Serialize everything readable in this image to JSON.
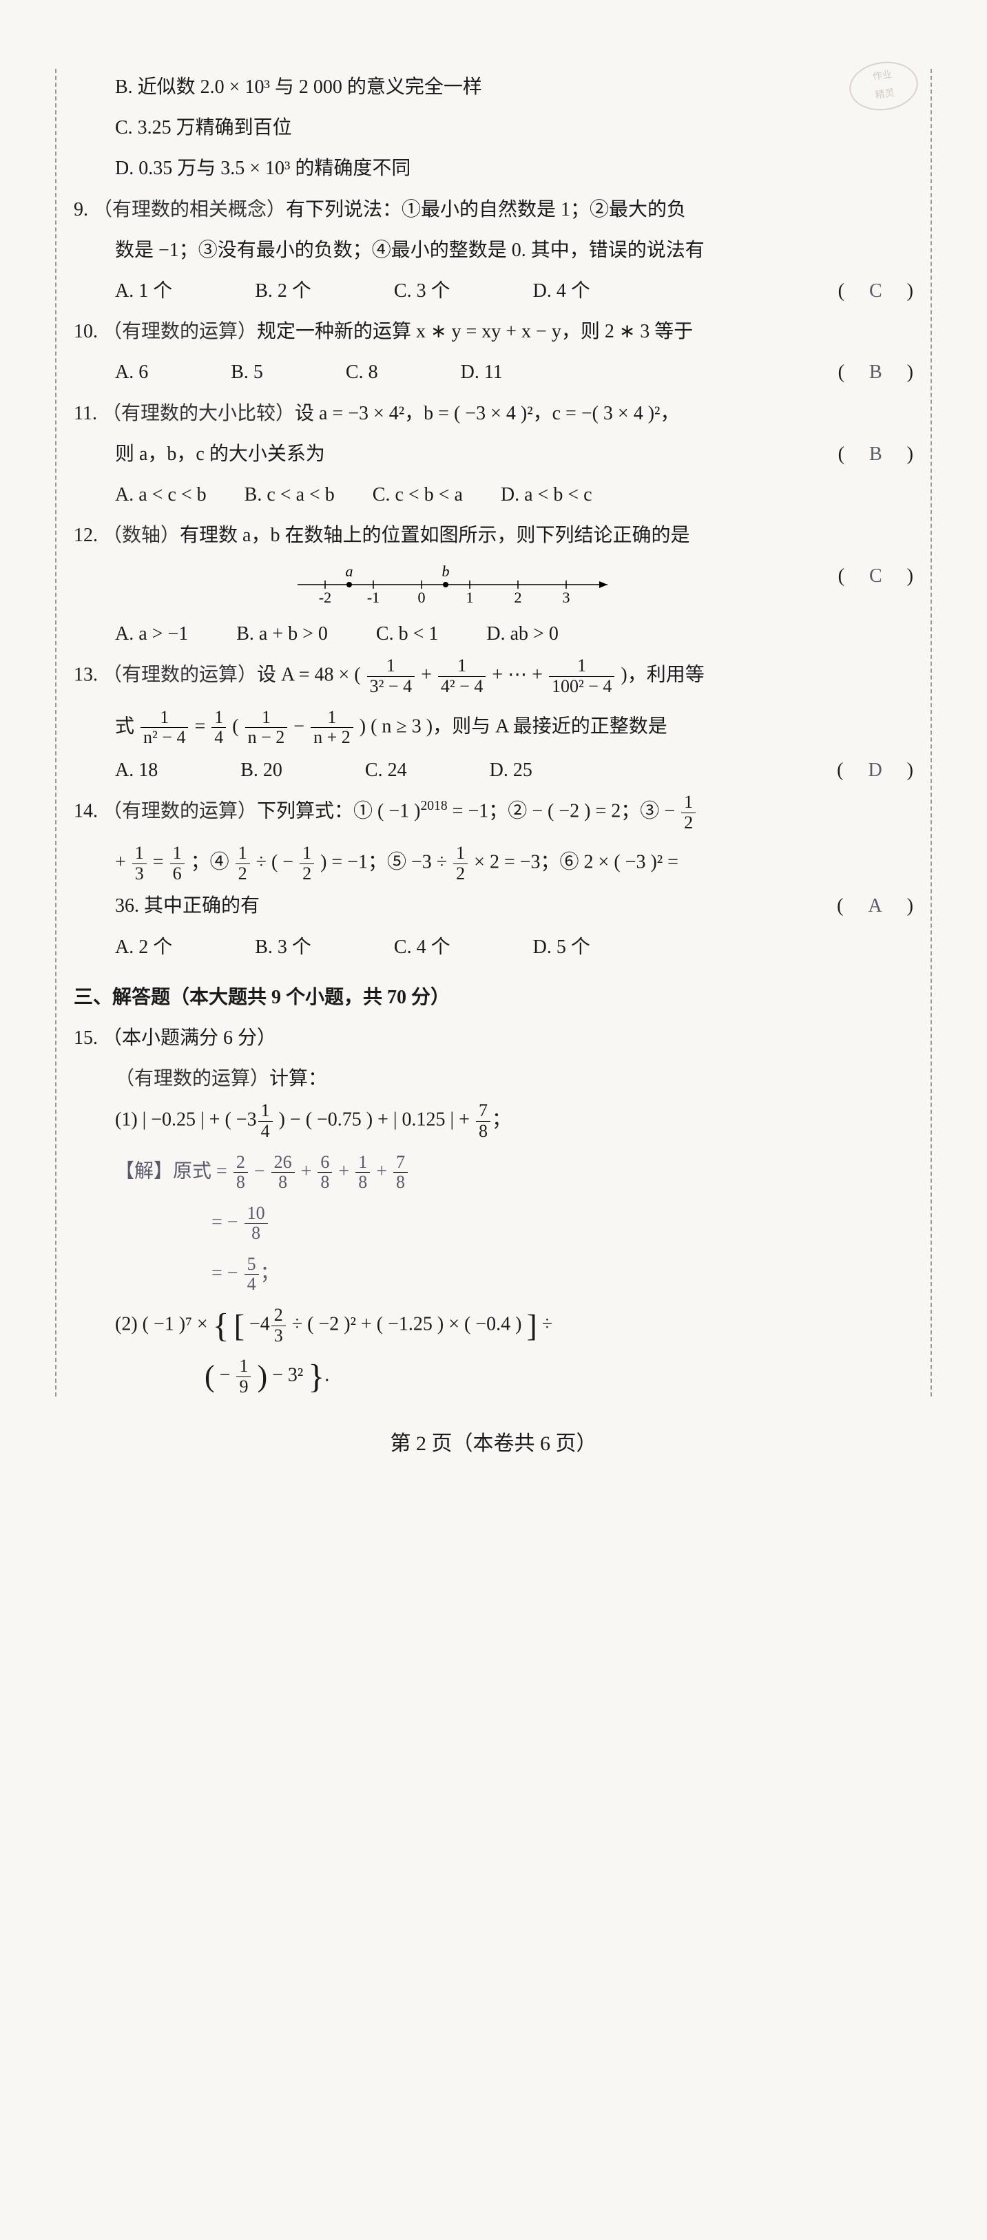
{
  "stamp": {
    "line1": "作业",
    "line2": "帮帮帮",
    "line3": "精灵"
  },
  "q8": {
    "optB": "B. 近似数 2.0 × 10³ 与 2 000 的意义完全一样",
    "optC": "C. 3.25 万精确到百位",
    "optD": "D. 0.35 万与 3.5 × 10³ 的精确度不同"
  },
  "q9": {
    "num": "9.",
    "tag": "（有理数的相关概念）",
    "body_l1": "有下列说法：①最小的自然数是 1；②最大的负",
    "body_l2": "数是 −1；③没有最小的负数；④最小的整数是 0. 其中，错误的说法有",
    "answer": "C",
    "A": "A. 1 个",
    "B": "B. 2 个",
    "C": "C. 3 个",
    "D": "D. 4 个"
  },
  "q10": {
    "num": "10.",
    "tag": "（有理数的运算）",
    "body": "规定一种新的运算 x ∗ y = xy + x − y，则 2 ∗ 3 等于",
    "answer": "B",
    "A": "A. 6",
    "B": "B. 5",
    "C": "C. 8",
    "D": "D. 11"
  },
  "q11": {
    "num": "11.",
    "tag": "（有理数的大小比较）",
    "body_l1": "设 a = −3 × 4²，b = ( −3 × 4 )²，c = −( 3 × 4 )²，",
    "body_l2": "则 a，b，c 的大小关系为",
    "answer": "B",
    "A": "A. a < c < b",
    "B": "B. c < a < b",
    "C": "C. c < b < a",
    "D": "D. a < b < c"
  },
  "q12": {
    "num": "12.",
    "tag": "（数轴）",
    "body": "有理数 a，b 在数轴上的位置如图所示，则下列结论正确的是",
    "answer": "C",
    "numberline": {
      "ticks": [
        -2,
        -1,
        0,
        1,
        2,
        3
      ],
      "a_pos": -1.5,
      "b_pos": 0.5,
      "a_label": "a",
      "b_label": "b"
    },
    "A": "A. a > −1",
    "B": "B. a + b > 0",
    "C": "C. b < 1",
    "D": "D. ab > 0"
  },
  "q13": {
    "num": "13.",
    "tag": "（有理数的运算）",
    "pre": "设 A = 48 × (",
    "term1": {
      "num": "1",
      "den": "3² − 4"
    },
    "plus1": " + ",
    "term2": {
      "num": "1",
      "den": "4² − 4"
    },
    "plus2": " + ⋯ + ",
    "term3": {
      "num": "1",
      "den": "100² − 4"
    },
    "post": ")，利用等",
    "l2_pre": "式",
    "l2_f1": {
      "num": "1",
      "den": "n² − 4"
    },
    "l2_eq": " = ",
    "l2_f2": {
      "num": "1",
      "den": "4"
    },
    "l2_open": "(",
    "l2_f3": {
      "num": "1",
      "den": "n − 2"
    },
    "l2_minus": " − ",
    "l2_f4": {
      "num": "1",
      "den": "n + 2"
    },
    "l2_close": ") ( n ≥ 3 )，则与 A 最接近的正整数是",
    "answer": "D",
    "A": "A. 18",
    "B": "B. 20",
    "C": "C. 24",
    "D": "D. 25"
  },
  "q14": {
    "num": "14.",
    "tag": "（有理数的运算）",
    "l1_a": "下列算式：① ( −1 )",
    "exp2018": "2018",
    "l1_b": " = −1；② − ( −2 ) = 2；③ − ",
    "l1_f1": {
      "num": "1",
      "den": "2"
    },
    "l2_a": " + ",
    "l2_f1": {
      "num": "1",
      "den": "3"
    },
    "l2_eq": " = ",
    "l2_f2": {
      "num": "1",
      "den": "6"
    },
    "l2_b": "；④ ",
    "l2_f3": {
      "num": "1",
      "den": "2"
    },
    "l2_c": " ÷ ( − ",
    "l2_f4": {
      "num": "1",
      "den": "2"
    },
    "l2_d": " ) = −1；⑤ −3 ÷ ",
    "l2_f5": {
      "num": "1",
      "den": "2"
    },
    "l2_e": " × 2 = −3；⑥ 2 × ( −3 )² =",
    "l3": "36. 其中正确的有",
    "answer": "A",
    "A": "A. 2 个",
    "B": "B. 3 个",
    "C": "C. 4 个",
    "D": "D. 5 个"
  },
  "section3": "三、解答题（本大题共 9 个小题，共 70 分）",
  "q15": {
    "num": "15.",
    "head": "（本小题满分 6 分）",
    "tag": "（有理数的运算）",
    "tag_post": "计算：",
    "p1": {
      "label": "(1)",
      "a": "| −0.25 | + ( −3",
      "f1": {
        "num": "1",
        "den": "4"
      },
      "b": " ) − ( −0.75 ) + | 0.125 | + ",
      "f2": {
        "num": "7",
        "den": "8"
      },
      "c": "；"
    },
    "solve": {
      "label": "【解】",
      "s1_pre": "原式 = ",
      "s1_f1": {
        "num": "2",
        "den": "8"
      },
      "s1_a": " − ",
      "s1_f2": {
        "num": "26",
        "den": "8"
      },
      "s1_b": " + ",
      "s1_f3": {
        "num": "6",
        "den": "8"
      },
      "s1_c": " + ",
      "s1_f4": {
        "num": "1",
        "den": "8"
      },
      "s1_d": " + ",
      "s1_f5": {
        "num": "7",
        "den": "8"
      },
      "s2_pre": "= − ",
      "s2_f": {
        "num": "10",
        "den": "8"
      },
      "s3_pre": "= − ",
      "s3_f": {
        "num": "5",
        "den": "4"
      },
      "s3_post": "；"
    },
    "p2": {
      "label": "(2)",
      "a": "( −1 )⁷ × ",
      "b": " −4",
      "f1": {
        "num": "2",
        "den": "3"
      },
      "c": " ÷ ( −2 )² + ( −1.25 ) × ( −0.4 )",
      "d": " ÷",
      "l2_a": "− ",
      "l2_f": {
        "num": "1",
        "den": "9"
      },
      "l2_b": " − 3²",
      "l2_c": "."
    }
  },
  "footer": "第 2 页（本卷共 6 页）"
}
